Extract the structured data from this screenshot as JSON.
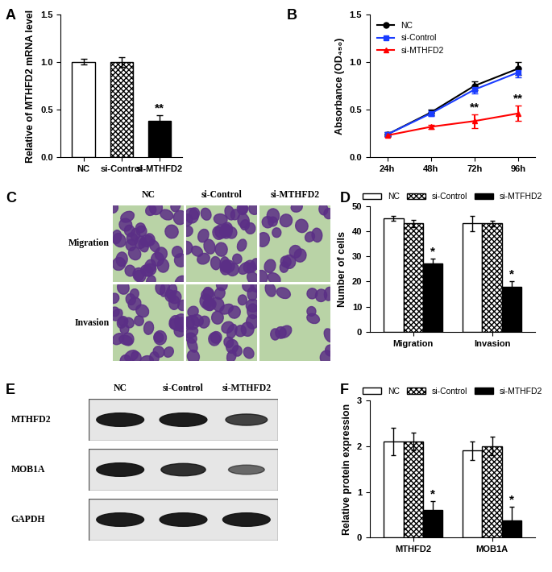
{
  "chart_data": [
    {
      "panel_label": "A",
      "type": "bar",
      "categories": [
        "NC",
        "si-Control",
        "si-MTHFD2"
      ],
      "values": [
        1.0,
        1.0,
        0.38
      ],
      "errors": [
        0.03,
        0.05,
        0.06
      ],
      "colors": [
        "#ffffff",
        "#ffffff",
        "#000000"
      ],
      "y_label": "Relative of MTHFD2 mRNA level",
      "ylim": [
        0,
        1.5
      ],
      "yticks": [
        {
          "value": 0,
          "label": "0.0"
        },
        0.5,
        {
          "value": 1,
          "label": "1.0"
        },
        1.5
      ],
      "annotations": [
        {
          "text": "**",
          "x": "si-MTHFD2"
        }
      ]
    },
    {
      "panel_label": "B",
      "type": "line",
      "categories": [
        "24h",
        "48h",
        "72h",
        "96h"
      ],
      "series": [
        {
          "name": "NC",
          "color": "#000000",
          "marker": "circle",
          "values": [
            0.24,
            0.47,
            0.75,
            0.93
          ],
          "errors": [
            0.02,
            0.03,
            0.05,
            0.07
          ]
        },
        {
          "name": "si-Control",
          "color": "#1a3cff",
          "marker": "square",
          "values": [
            0.24,
            0.46,
            0.71,
            0.89
          ],
          "errors": [
            0.02,
            0.03,
            0.04,
            0.05
          ]
        },
        {
          "name": "si-MTHFD2",
          "color": "#ff0000",
          "marker": "triangle",
          "values": [
            0.23,
            0.32,
            0.38,
            0.46
          ],
          "errors": [
            0.02,
            0.02,
            0.07,
            0.08
          ]
        }
      ],
      "y_label": "Absorbance (OD₄₅₀)",
      "ylim": [
        0,
        1.5
      ],
      "yticks": [
        {
          "value": 0,
          "label": "0.0"
        },
        0.5,
        {
          "value": 1,
          "label": "1.0"
        },
        1.5
      ],
      "legend": "upper left",
      "annotations": [
        {
          "text": "**",
          "x": "72h",
          "series": "si-MTHFD2"
        },
        {
          "text": "**",
          "x": "96h",
          "series": "si-MTHFD2"
        }
      ]
    },
    {
      "panel_label": "D",
      "type": "bar",
      "categories": [
        "Migration",
        "Invasion"
      ],
      "series": [
        {
          "name": "NC",
          "color": "#ffffff",
          "values": [
            45,
            43
          ],
          "errors": [
            1,
            3
          ]
        },
        {
          "name": "si-Control",
          "color": "#ffffff",
          "values": [
            43,
            43
          ],
          "errors": [
            1.5,
            1
          ]
        },
        {
          "name": "si-MTFHD2",
          "color": "#000000",
          "values": [
            27,
            18
          ],
          "errors": [
            2,
            2
          ]
        }
      ],
      "y_label": "Number of cells",
      "ylim": [
        0,
        50
      ],
      "yticks": [
        0,
        10,
        20,
        30,
        40,
        50
      ],
      "legend": "top",
      "annotations": [
        {
          "text": "*",
          "x": "Migration",
          "series": "si-MTFHD2"
        },
        {
          "text": "*",
          "x": "Invasion",
          "series": "si-MTFHD2"
        }
      ]
    },
    {
      "panel_label": "F",
      "type": "bar",
      "categories": [
        "MTHFD2",
        "MOB1A"
      ],
      "series": [
        {
          "name": "NC",
          "color": "#ffffff",
          "values": [
            2.1,
            1.9
          ],
          "errors": [
            0.3,
            0.2
          ]
        },
        {
          "name": "si-Control",
          "color": "#ffffff",
          "values": [
            2.1,
            2.0
          ],
          "errors": [
            0.2,
            0.2
          ]
        },
        {
          "name": "si-MTHFD2",
          "color": "#000000",
          "values": [
            0.6,
            0.38
          ],
          "errors": [
            0.2,
            0.3
          ]
        }
      ],
      "y_label": "Relative protein expression",
      "ylim": [
        0,
        3
      ],
      "yticks": [
        0,
        1,
        2,
        3
      ],
      "legend": "top",
      "annotations": [
        {
          "text": "*",
          "x": "MTHFD2",
          "series": "si-MTHFD2"
        },
        {
          "text": "*",
          "x": "MOB1A",
          "series": "si-MTHFD2"
        }
      ]
    }
  ],
  "images": [
    {
      "panel_label": "C",
      "columns": [
        "NC",
        "si-Control",
        "si-MTHFD2"
      ],
      "rows": [
        "Migration",
        "Invasion"
      ]
    },
    {
      "panel_label": "E",
      "columns": [
        "NC",
        "si-Control",
        "si-MTHFD2"
      ],
      "rows": [
        "MTHFD2",
        "MOB1A",
        "GAPDH"
      ]
    }
  ]
}
